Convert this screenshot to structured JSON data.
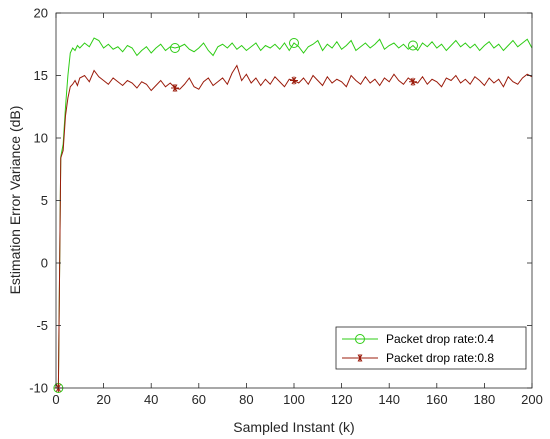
{
  "chart_data": {
    "type": "line",
    "title": "",
    "xlabel": "Sampled Instant (k)",
    "ylabel": "Estimation Error Variance (dB)",
    "xlim": [
      0,
      200
    ],
    "ylim": [
      -10,
      20
    ],
    "xticks": [
      "0",
      "20",
      "40",
      "60",
      "80",
      "100",
      "120",
      "140",
      "160",
      "180",
      "200"
    ],
    "yticks": [
      "-10",
      "-5",
      "0",
      "5",
      "10",
      "15",
      "20"
    ],
    "grid": false,
    "legend_position": "bottom-right",
    "series": [
      {
        "name": "Packet drop rate:0.4",
        "color": "#2ecc15",
        "marker": "circle",
        "marker_x": [
          1,
          51,
          101,
          151
        ],
        "x": [
          1,
          2,
          3,
          4,
          5,
          6,
          7,
          8,
          9,
          10,
          12,
          14,
          16,
          18,
          20,
          22,
          24,
          26,
          28,
          30,
          32,
          34,
          36,
          38,
          40,
          42,
          44,
          46,
          48,
          50,
          52,
          54,
          56,
          58,
          60,
          62,
          64,
          66,
          68,
          70,
          72,
          74,
          76,
          78,
          80,
          82,
          84,
          86,
          88,
          90,
          92,
          94,
          96,
          98,
          100,
          102,
          104,
          106,
          108,
          110,
          112,
          114,
          116,
          118,
          120,
          122,
          124,
          126,
          128,
          130,
          132,
          134,
          136,
          138,
          140,
          142,
          144,
          146,
          148,
          150,
          152,
          154,
          156,
          158,
          160,
          162,
          164,
          166,
          168,
          170,
          172,
          174,
          176,
          178,
          180,
          182,
          184,
          186,
          188,
          190,
          192,
          194,
          196,
          198,
          200
        ],
        "y": [
          -10,
          8.5,
          9.5,
          12.5,
          15.0,
          16.8,
          17.2,
          17.0,
          17.4,
          17.2,
          17.6,
          17.3,
          18.0,
          17.8,
          17.2,
          17.5,
          17.1,
          17.3,
          16.9,
          17.4,
          17.2,
          16.6,
          17.0,
          17.3,
          16.8,
          17.2,
          17.5,
          17.0,
          17.3,
          17.2,
          17.3,
          17.5,
          17.1,
          16.9,
          17.2,
          17.6,
          17.0,
          16.6,
          17.3,
          17.5,
          17.2,
          17.6,
          17.1,
          17.4,
          17.0,
          17.3,
          17.6,
          17.0,
          17.4,
          17.2,
          17.5,
          17.1,
          17.6,
          17.0,
          17.6,
          17.3,
          16.8,
          17.3,
          17.5,
          17.8,
          17.0,
          17.5,
          17.2,
          17.7,
          17.1,
          17.4,
          17.8,
          17.0,
          17.3,
          17.6,
          17.2,
          17.5,
          17.9,
          17.1,
          17.4,
          17.6,
          17.2,
          17.5,
          17.1,
          17.4,
          17.0,
          17.6,
          17.3,
          17.7,
          17.2,
          17.5,
          17.0,
          17.4,
          17.8,
          17.3,
          17.6,
          17.2,
          17.5,
          17.0,
          17.4,
          17.7,
          17.2,
          17.5,
          17.0,
          17.4,
          17.8,
          17.3,
          17.6,
          17.9,
          17.2
        ]
      },
      {
        "name": "Packet drop rate:0.8",
        "color": "#9b1c0c",
        "marker": "asterisk",
        "marker_x": [
          1,
          51,
          101,
          151
        ],
        "x": [
          1,
          2,
          3,
          4,
          5,
          6,
          7,
          8,
          9,
          10,
          12,
          14,
          16,
          18,
          20,
          22,
          24,
          26,
          28,
          30,
          32,
          34,
          36,
          38,
          40,
          42,
          44,
          46,
          48,
          50,
          52,
          54,
          56,
          58,
          60,
          62,
          64,
          66,
          68,
          70,
          72,
          74,
          76,
          78,
          80,
          82,
          84,
          86,
          88,
          90,
          92,
          94,
          96,
          98,
          100,
          102,
          104,
          106,
          108,
          110,
          112,
          114,
          116,
          118,
          120,
          122,
          124,
          126,
          128,
          130,
          132,
          134,
          136,
          138,
          140,
          142,
          144,
          146,
          148,
          150,
          152,
          154,
          156,
          158,
          160,
          162,
          164,
          166,
          168,
          170,
          172,
          174,
          176,
          178,
          180,
          182,
          184,
          186,
          188,
          190,
          192,
          194,
          196,
          198,
          200
        ],
        "y": [
          -10,
          8.4,
          9.0,
          11.8,
          13.2,
          14.1,
          14.3,
          14.6,
          14.2,
          14.8,
          15.0,
          14.5,
          15.4,
          14.9,
          14.6,
          14.3,
          14.8,
          14.5,
          14.2,
          14.6,
          14.4,
          14.0,
          14.5,
          14.3,
          13.8,
          14.2,
          14.6,
          14.1,
          14.4,
          14.0,
          13.9,
          14.3,
          14.8,
          14.1,
          13.9,
          14.5,
          14.8,
          14.2,
          14.5,
          14.8,
          14.3,
          15.2,
          15.8,
          14.6,
          15.1,
          14.4,
          14.8,
          14.2,
          14.7,
          14.3,
          14.9,
          14.5,
          14.1,
          14.7,
          14.6,
          14.4,
          14.8,
          14.3,
          15.0,
          14.6,
          14.2,
          14.9,
          14.4,
          14.7,
          14.5,
          14.1,
          15.0,
          14.6,
          14.3,
          14.9,
          14.4,
          14.7,
          14.2,
          14.8,
          14.5,
          15.1,
          14.6,
          14.3,
          14.8,
          14.5,
          14.4,
          14.9,
          14.3,
          14.7,
          14.5,
          14.1,
          14.8,
          14.6,
          15.0,
          14.4,
          14.7,
          14.3,
          14.9,
          14.6,
          14.2,
          14.8,
          14.4,
          14.7,
          14.1,
          14.9,
          14.5,
          14.3,
          14.8,
          15.1,
          14.9
        ]
      }
    ]
  }
}
